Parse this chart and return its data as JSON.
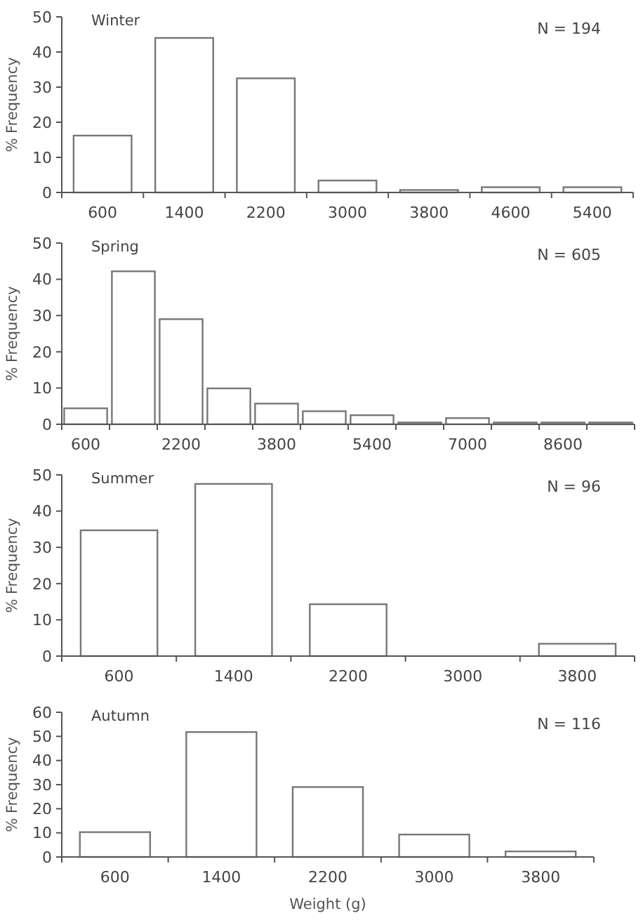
{
  "chart_data": [
    {
      "type": "bar",
      "title": "Winter",
      "ylabel": "% Frequency",
      "annotations": [
        "N = 194"
      ],
      "categories": [
        "600",
        "1400",
        "2200",
        "3000",
        "3800",
        "4600",
        "5400"
      ],
      "values": [
        16.2,
        44,
        32.5,
        3.4,
        0.7,
        1.5,
        1.5
      ],
      "color": "#ffffff",
      "ylim": [
        0,
        50
      ],
      "yticks": [
        0,
        10,
        20,
        30,
        40,
        50
      ]
    },
    {
      "type": "bar",
      "title": "Spring",
      "ylabel": "% Frequency",
      "annotations": [
        "N = 605"
      ],
      "categories": [
        "600",
        null,
        "2200",
        null,
        "3800",
        null,
        "5400",
        null,
        "7000",
        null,
        "8600",
        null
      ],
      "values": [
        4.4,
        42.2,
        29,
        9.9,
        5.7,
        3.6,
        2.5,
        0.5,
        1.7,
        0.5,
        0.5,
        0.5
      ],
      "color": "#ffffff",
      "ylim": [
        0,
        50
      ],
      "yticks": [
        0,
        10,
        20,
        30,
        40,
        50
      ]
    },
    {
      "type": "bar",
      "title": "Summer",
      "ylabel": "% Frequency",
      "annotations": [
        "N = 96"
      ],
      "categories": [
        "600",
        "1400",
        "2200",
        "3000",
        "3800"
      ],
      "values": [
        34.7,
        47.5,
        14.3,
        0,
        3.4
      ],
      "color": "#ffffff",
      "ylim": [
        0,
        50
      ],
      "yticks": [
        0,
        10,
        20,
        30,
        40,
        50
      ]
    },
    {
      "type": "bar",
      "title": "Autumn",
      "xlabel": "Weight (g)",
      "ylabel": "% Frequency",
      "annotations": [
        "N = 116"
      ],
      "categories": [
        "600",
        "1400",
        "2200",
        "3000",
        "3800"
      ],
      "values": [
        10.3,
        51.8,
        29,
        9.3,
        2.3
      ],
      "color": "#ffffff",
      "ylim": [
        0,
        60
      ],
      "yticks": [
        0,
        10,
        20,
        30,
        40,
        50,
        60
      ]
    }
  ]
}
